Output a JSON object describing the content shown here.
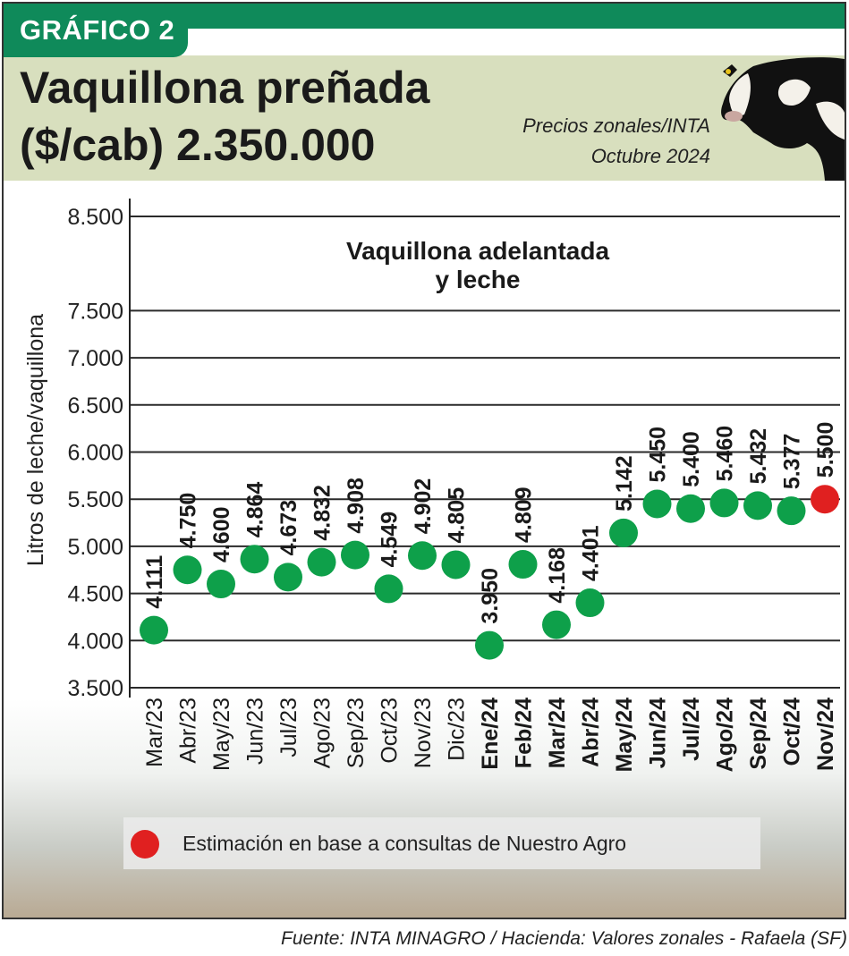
{
  "header": {
    "tag": "GRÁFICO 2",
    "title_line1": "Vaquillona preñada",
    "title_line2": "($/cab) 2.350.000",
    "source_line1": "Precios zonales/INTA",
    "source_line2": "Octubre 2024",
    "accent_color": "#0f8a5a",
    "header_bg_color": "#d8dfbe"
  },
  "legend": {
    "text": "Estimación en base a consultas de Nuestro Agro",
    "marker_color": "#e02020"
  },
  "footer": {
    "text": "Fuente: INTA MINAGRO /  Hacienda: Valores zonales - Rafaela (SF)"
  },
  "chart_data": {
    "type": "scatter",
    "title": "Vaquillona adelantada y leche",
    "title_lines": [
      "Vaquillona adelantada",
      "y leche"
    ],
    "ylabel": "Litros de leche/vaquillona",
    "xlabel": "",
    "ylim": [
      3500,
      8500
    ],
    "yticks": [
      3500,
      4000,
      4500,
      5000,
      5500,
      6000,
      6500,
      7000,
      7500,
      8500
    ],
    "ytick_labels": [
      "3.500",
      "4.000",
      "4.500",
      "5.000",
      "5.500",
      "6.000",
      "6.500",
      "7.000",
      "7.500",
      "8.500"
    ],
    "grid": true,
    "categories": [
      "Mar/23",
      "Abr/23",
      "May/23",
      "Jun/23",
      "Jul/23",
      "Ago/23",
      "Sep/23",
      "Oct/23",
      "Nov/23",
      "Dic/23",
      "Ene/24",
      "Feb/24",
      "Mar/24",
      "Abr/24",
      "May/24",
      "Jun/24",
      "Jul/24",
      "Ago/24",
      "Sep/24",
      "Oct/24",
      "Nov/24"
    ],
    "bold_categories": [
      "Ene/24",
      "Feb/24",
      "Mar/24",
      "Abr/24",
      "May/24",
      "Jun/24",
      "Jul/24",
      "Ago/24",
      "Sep/24",
      "Oct/24",
      "Nov/24"
    ],
    "values": [
      4111,
      4750,
      4600,
      4864,
      4673,
      4832,
      4908,
      4549,
      4902,
      4805,
      3950,
      4809,
      4168,
      4401,
      5142,
      5450,
      5400,
      5460,
      5432,
      5377,
      5500
    ],
    "value_labels": [
      "4.111",
      "4.750",
      "4.600",
      "4.864",
      "4.673",
      "4.832",
      "4.908",
      "4.549",
      "4.902",
      "4.805",
      "3.950",
      "4.809",
      "4.168",
      "4.401",
      "5.142",
      "5.450",
      "5.400",
      "5.460",
      "5.432",
      "5.377",
      "5.500"
    ],
    "colors": {
      "actual": "#0ea04a",
      "estimate": "#e02020"
    },
    "estimate_flags": [
      false,
      false,
      false,
      false,
      false,
      false,
      false,
      false,
      false,
      false,
      false,
      false,
      false,
      false,
      false,
      false,
      false,
      false,
      false,
      false,
      true
    ]
  }
}
